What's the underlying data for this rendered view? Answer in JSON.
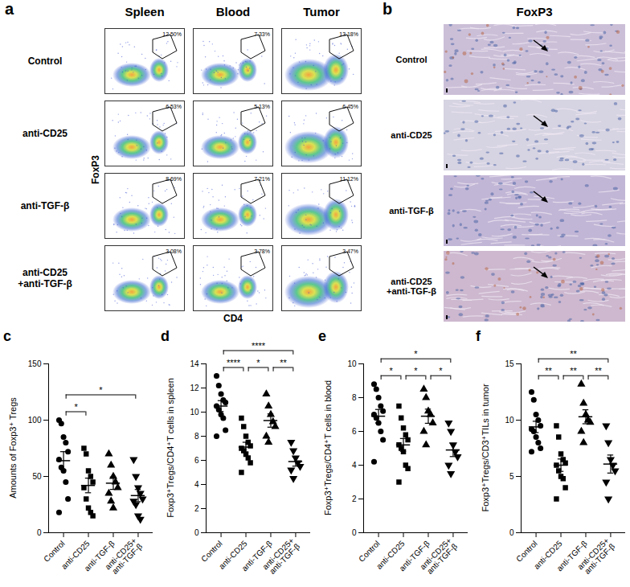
{
  "figure": {
    "a": {
      "panel_label": "a",
      "columns": [
        "Spleen",
        "Blood",
        "Tumor"
      ],
      "rows": [
        "Control",
        "anti-CD25",
        "anti-TGF-β",
        "anti-CD25\n+anti-TGF-β"
      ],
      "x_label": "CD4",
      "y_label": "FoxP3",
      "gate_percentages": [
        [
          {
            "value": 12.5,
            "label": "12.50%"
          },
          {
            "value": 7.33,
            "label": "7.33%"
          },
          {
            "value": 13.18,
            "label": "13.18%"
          }
        ],
        [
          {
            "value": 6.53,
            "label": "6.53%"
          },
          {
            "value": 5.13,
            "label": "5.13%"
          },
          {
            "value": 6.45,
            "label": "6.45%"
          }
        ],
        [
          {
            "value": 8.69,
            "label": "8.69%"
          },
          {
            "value": 7.21,
            "label": "7.21%"
          },
          {
            "value": 11.12,
            "label": "11.12%"
          }
        ],
        [
          {
            "value": 3.08,
            "label": "3.08%"
          },
          {
            "value": 3.78,
            "label": "3.78%"
          },
          {
            "value": 3.47,
            "label": "3.47%"
          }
        ]
      ]
    },
    "b": {
      "panel_label": "b",
      "title": "FoxP3",
      "rows": [
        "Control",
        "anti-CD25",
        "anti-TGF-β",
        "anti-CD25\n+anti-TGF-β"
      ]
    }
  },
  "chart_data": [
    {
      "type": "scatter",
      "panel_label": "c",
      "ylabel": "Amounts of Foxp3⁺ Tregs",
      "color": "#000000",
      "ylim": [
        0,
        150
      ],
      "yticks": [
        0,
        50,
        100,
        150
      ],
      "series": [
        {
          "name": "Control",
          "marker": "circle",
          "values": [
            100,
            97,
            85,
            80,
            72,
            65,
            58,
            55,
            45,
            30,
            18
          ],
          "mean": 64,
          "sem": 8
        },
        {
          "name": "anti-CD25",
          "marker": "square",
          "values": [
            75,
            70,
            55,
            50,
            45,
            40,
            30,
            22,
            18,
            15
          ],
          "mean": 42,
          "sem": 6.5
        },
        {
          "name": "anti-TGF-β",
          "marker": "triangle-up",
          "values": [
            70,
            60,
            50,
            45,
            40,
            35,
            28,
            22
          ],
          "mean": 44,
          "sem": 5.5
        },
        {
          "name": "anti-CD25+\nanti-TGF-β",
          "marker": "triangle-down",
          "values": [
            65,
            50,
            40,
            35,
            30,
            28,
            25,
            15,
            12
          ],
          "mean": 33,
          "sem": 5.4
        }
      ],
      "comparisons": [
        {
          "between": [
            0,
            1
          ],
          "label": "*"
        },
        {
          "between": [
            0,
            3
          ],
          "label": "*"
        }
      ]
    },
    {
      "type": "scatter",
      "panel_label": "d",
      "ylabel": "Foxp3⁺Tregs/CD4⁺T cells in spleen",
      "color": "#000000",
      "ylim": [
        0,
        14
      ],
      "yticks": [
        0,
        2,
        4,
        6,
        8,
        10,
        12,
        14
      ],
      "series": [
        {
          "name": "Control",
          "marker": "circle",
          "values": [
            13.0,
            12.2,
            11.5,
            11.0,
            10.8,
            10.5,
            10.2,
            9.8,
            9.5,
            8.5,
            8.0
          ],
          "mean": 10.5,
          "sem": 0.45
        },
        {
          "name": "anti-CD25",
          "marker": "square",
          "values": [
            9.5,
            8.8,
            8.0,
            7.5,
            7.2,
            7.0,
            6.8,
            6.5,
            6.2,
            5.8,
            5.0
          ],
          "mean": 7.1,
          "sem": 0.4
        },
        {
          "name": "anti-TGF-β",
          "marker": "triangle-up",
          "values": [
            11.5,
            10.5,
            9.8,
            9.2,
            8.8,
            8.0,
            7.5
          ],
          "mean": 9.3,
          "sem": 0.55
        },
        {
          "name": "anti-CD25+\nanti-TGF-β",
          "marker": "triangle-down",
          "values": [
            7.5,
            6.8,
            6.2,
            5.8,
            5.5,
            5.2,
            4.5
          ],
          "mean": 5.9,
          "sem": 0.38
        }
      ],
      "comparisons": [
        {
          "between": [
            0,
            1
          ],
          "label": "****"
        },
        {
          "between": [
            1,
            2
          ],
          "label": "*"
        },
        {
          "between": [
            2,
            3
          ],
          "label": "**"
        },
        {
          "between": [
            0,
            3
          ],
          "label": "****"
        }
      ]
    },
    {
      "type": "scatter",
      "panel_label": "e",
      "ylabel": "Foxp3⁺Tregs/CD4⁺T cells in blood",
      "color": "#000000",
      "ylim": [
        0,
        10
      ],
      "yticks": [
        0,
        2,
        4,
        6,
        8,
        10
      ],
      "series": [
        {
          "name": "Control",
          "marker": "circle",
          "values": [
            8.8,
            8.5,
            8.0,
            7.5,
            7.2,
            7.0,
            6.8,
            6.5,
            6.0,
            5.5,
            4.2
          ],
          "mean": 6.9,
          "sem": 0.4
        },
        {
          "name": "anti-CD25",
          "marker": "square",
          "values": [
            7.5,
            6.8,
            6.2,
            5.8,
            5.5,
            5.2,
            5.0,
            4.8,
            4.0,
            3.8,
            3.0
          ],
          "mean": 5.2,
          "sem": 0.38
        },
        {
          "name": "anti-TGF-β",
          "marker": "triangle-up",
          "values": [
            8.5,
            8.0,
            7.2,
            7.0,
            6.5,
            6.0,
            5.2
          ],
          "mean": 6.9,
          "sem": 0.42
        },
        {
          "name": "anti-CD25+\nanti-TGF-β",
          "marker": "triangle-down",
          "values": [
            6.5,
            6.0,
            5.2,
            4.8,
            4.5,
            4.0,
            3.5
          ],
          "mean": 4.9,
          "sem": 0.39
        }
      ],
      "comparisons": [
        {
          "between": [
            0,
            1
          ],
          "label": "*"
        },
        {
          "between": [
            1,
            2
          ],
          "label": "*"
        },
        {
          "between": [
            2,
            3
          ],
          "label": "*"
        },
        {
          "between": [
            0,
            3
          ],
          "label": "*"
        }
      ]
    },
    {
      "type": "scatter",
      "panel_label": "f",
      "ylabel": "Foxp3⁺Tregs/CD3⁺TILs in tumor",
      "color": "#000000",
      "ylim": [
        0,
        15
      ],
      "yticks": [
        0,
        5,
        10,
        15
      ],
      "series": [
        {
          "name": "Control",
          "marker": "circle",
          "values": [
            12.5,
            11.8,
            10.5,
            10.0,
            9.5,
            9.2,
            9.0,
            8.5,
            8.0,
            7.5,
            7.2
          ],
          "mean": 9.4,
          "sem": 0.5
        },
        {
          "name": "anti-CD25",
          "marker": "square",
          "values": [
            9.5,
            8.5,
            7.0,
            6.5,
            6.2,
            6.0,
            5.5,
            5.0,
            4.8,
            4.0,
            3.0
          ],
          "mean": 6.0,
          "sem": 0.55
        },
        {
          "name": "anti-TGF-β",
          "marker": "triangle-up",
          "values": [
            13.2,
            11.5,
            10.5,
            10.0,
            9.8,
            9.0,
            8.0
          ],
          "mean": 10.3,
          "sem": 0.62
        },
        {
          "name": "anti-CD25+\nanti-TGF-β",
          "marker": "triangle-down",
          "values": [
            9.5,
            8.0,
            6.5,
            6.0,
            5.5,
            4.5,
            3.0
          ],
          "mean": 6.1,
          "sem": 0.8
        }
      ],
      "comparisons": [
        {
          "between": [
            0,
            1
          ],
          "label": "**"
        },
        {
          "between": [
            1,
            2
          ],
          "label": "**"
        },
        {
          "between": [
            2,
            3
          ],
          "label": "**"
        },
        {
          "between": [
            0,
            3
          ],
          "label": "**"
        }
      ]
    }
  ]
}
